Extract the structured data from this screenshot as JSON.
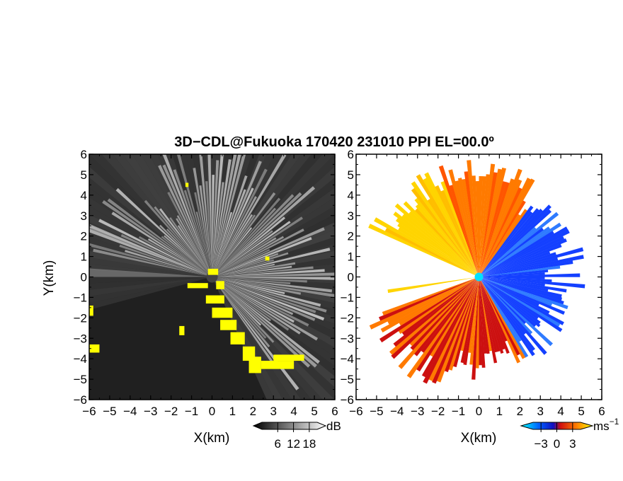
{
  "title": "3D−CDL@Fukuoka 170420 231010 PPI EL=00.0º",
  "chart_data": [
    {
      "type": "heatmap",
      "xlabel": "X(km)",
      "ylabel": "Y(km)",
      "xlim": [
        -6,
        6
      ],
      "ylim": [
        -6,
        6
      ],
      "xticks": [
        "−6",
        "−5",
        "−4",
        "−3",
        "−2",
        "−1",
        "0",
        "1",
        "2",
        "3",
        "4",
        "5",
        "6"
      ],
      "yticks": [
        "−6",
        "−5",
        "−4",
        "−3",
        "−2",
        "−1",
        "0",
        "1",
        "2",
        "3",
        "4",
        "5",
        "6"
      ],
      "colorbar": {
        "unit": "dB",
        "ticks": [
          "6",
          "12",
          "18"
        ],
        "tick_values": [
          6,
          12,
          18
        ],
        "range": [
          0,
          21
        ]
      },
      "colors": {
        "background": "#202020",
        "echo": "#e6e6e6",
        "highlight": "#ffff00"
      }
    },
    {
      "type": "heatmap",
      "xlabel": "X(km)",
      "xlim": [
        -6,
        6
      ],
      "ylim": [
        -6,
        6
      ],
      "xticks": [
        "−6",
        "−5",
        "−4",
        "−3",
        "−2",
        "−1",
        "0",
        "1",
        "2",
        "3",
        "4",
        "5",
        "6"
      ],
      "yticks": [
        "−6",
        "−5",
        "−4",
        "−3",
        "−2",
        "−1",
        "0",
        "1",
        "2",
        "3",
        "4",
        "5",
        "6"
      ],
      "colorbar": {
        "unit": "ms",
        "unit_exponent": "−1",
        "ticks": [
          "−3",
          "0",
          "3"
        ],
        "tick_values": [
          -3,
          0,
          3
        ],
        "range": [
          -4.5,
          4.5
        ]
      },
      "colors": {
        "negative": "#1440ff",
        "near_zero": "#cc1010",
        "positive": "#ff7a00",
        "high": "#ffd400",
        "center": "#00e0ff"
      }
    }
  ]
}
